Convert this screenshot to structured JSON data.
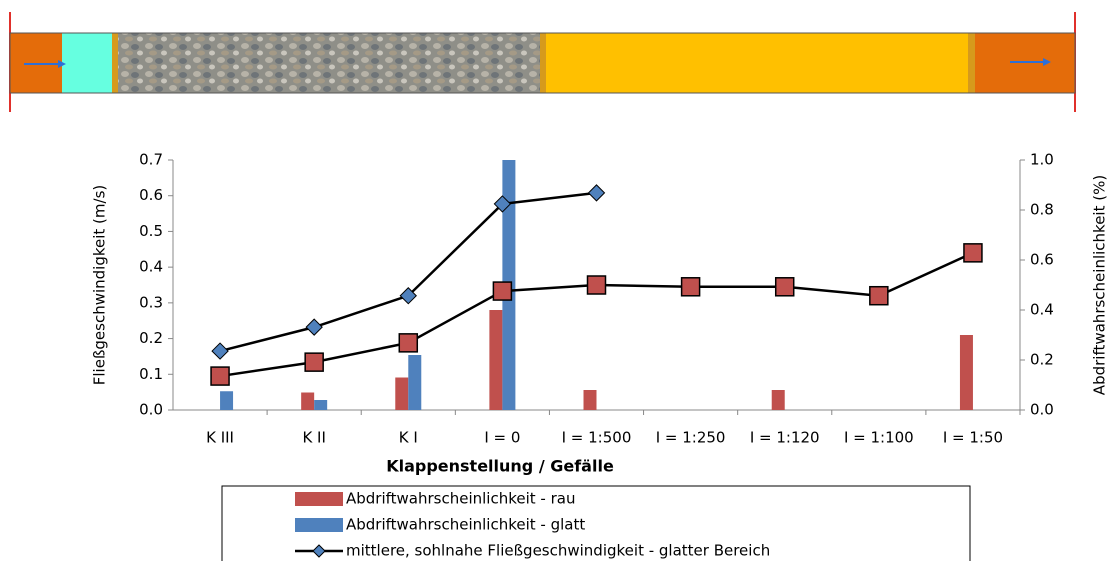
{
  "chart_data": {
    "type": "bar_line",
    "xlabel": "Klappenstellung / Gefälle",
    "ylabel": "Fließgeschwindigkeit (m/s)",
    "y2label": "Abdriftwahrscheinlichkeit (%)",
    "categories": [
      "K III",
      "K II",
      "K I",
      "I = 0",
      "I = 1:500",
      "I = 1:250",
      "I = 1:120",
      "I = 1:100",
      "I = 1:50"
    ],
    "ylim": [
      0,
      0.7
    ],
    "yticks": [
      {
        "value": 0,
        "label": "0.0"
      },
      0.1,
      0.2,
      0.3,
      0.4,
      0.5,
      0.6,
      0.7
    ],
    "y2lim": [
      0,
      1.0
    ],
    "y2ticks": [
      {
        "value": 0,
        "label": "0.0"
      },
      0.2,
      0.4,
      0.6,
      0.8,
      {
        "value": 1,
        "label": "1.0"
      }
    ],
    "series": [
      {
        "name": "Abdriftwahrscheinlichkeit - rau",
        "kind": "bar",
        "axis": "y2",
        "color": "#c0504d",
        "values": [
          null,
          0.07,
          0.13,
          0.4,
          0.08,
          null,
          0.08,
          null,
          0.3
        ]
      },
      {
        "name": "Abdriftwahrscheinlichkeit - glatt",
        "kind": "bar",
        "axis": "y2",
        "color": "#4f81bd",
        "values": [
          0.075,
          0.04,
          0.22,
          1.0,
          null,
          null,
          null,
          null,
          null
        ]
      },
      {
        "name": "mittlere, sohlnahe Fließgeschwindigkeit - glatter Bereich",
        "kind": "line",
        "marker": "diamond",
        "color": "#4f81bd",
        "values": [
          0.165,
          0.232,
          0.32,
          0.577,
          0.608,
          null,
          null,
          null,
          null
        ]
      },
      {
        "kind": "line",
        "marker": "square",
        "color": "#c0504d",
        "values": [
          0.095,
          0.134,
          0.188,
          0.333,
          0.35,
          0.345,
          0.345,
          0.32,
          0.44
        ]
      }
    ]
  }
}
